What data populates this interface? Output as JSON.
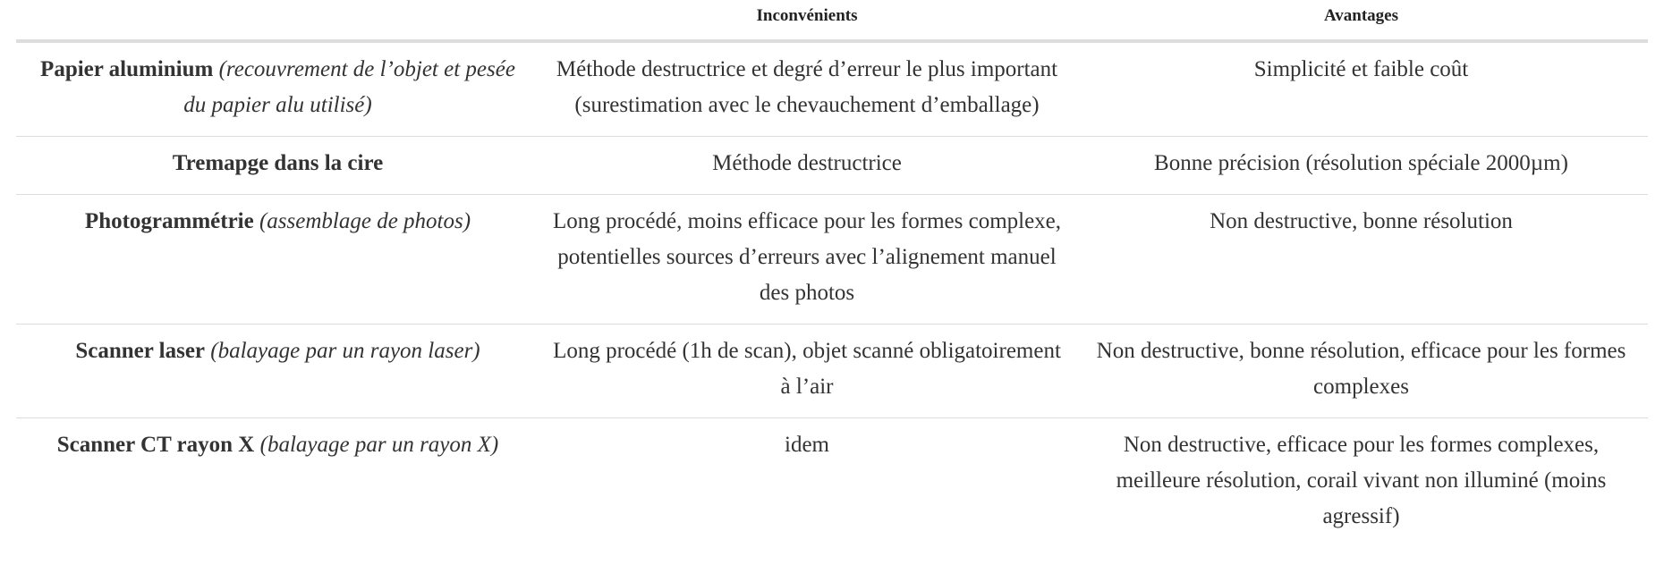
{
  "table": {
    "headers": [
      "",
      "Inconvénients",
      "Avantages"
    ],
    "rows": [
      {
        "name": "Papier aluminium",
        "desc": "(recouvrement de l’objet et pesée du papier alu utilisé)",
        "cons": "Méthode destructrice et degré d’erreur le plus important (surestimation avec le chevauchement d’emballage)",
        "pros": "Simplicité et faible coût"
      },
      {
        "name": "Tremapge dans la cire",
        "desc": "",
        "cons": "Méthode destructrice",
        "pros": "Bonne précision (résolution spéciale 2000µm)"
      },
      {
        "name": "Photogrammétrie",
        "desc": "(assemblage de photos)",
        "cons": "Long procédé, moins efficace pour les formes complexe, potentielles sources d’erreurs avec l’alignement manuel des photos",
        "pros": "Non destructive, bonne résolution"
      },
      {
        "name": "Scanner laser",
        "desc": "(balayage par un rayon laser)",
        "cons": "Long procédé (1h de scan), objet scanné obligatoirement à l’air",
        "pros": "Non destructive, bonne résolution, efficace pour les formes complexes"
      },
      {
        "name": "Scanner CT rayon X",
        "desc": "(balayage par un rayon X)",
        "cons": "idem",
        "pros": "Non destructive, efficace pour les formes complexes, meilleure résolution, corail vivant non illuminé (moins agressif)"
      }
    ]
  }
}
